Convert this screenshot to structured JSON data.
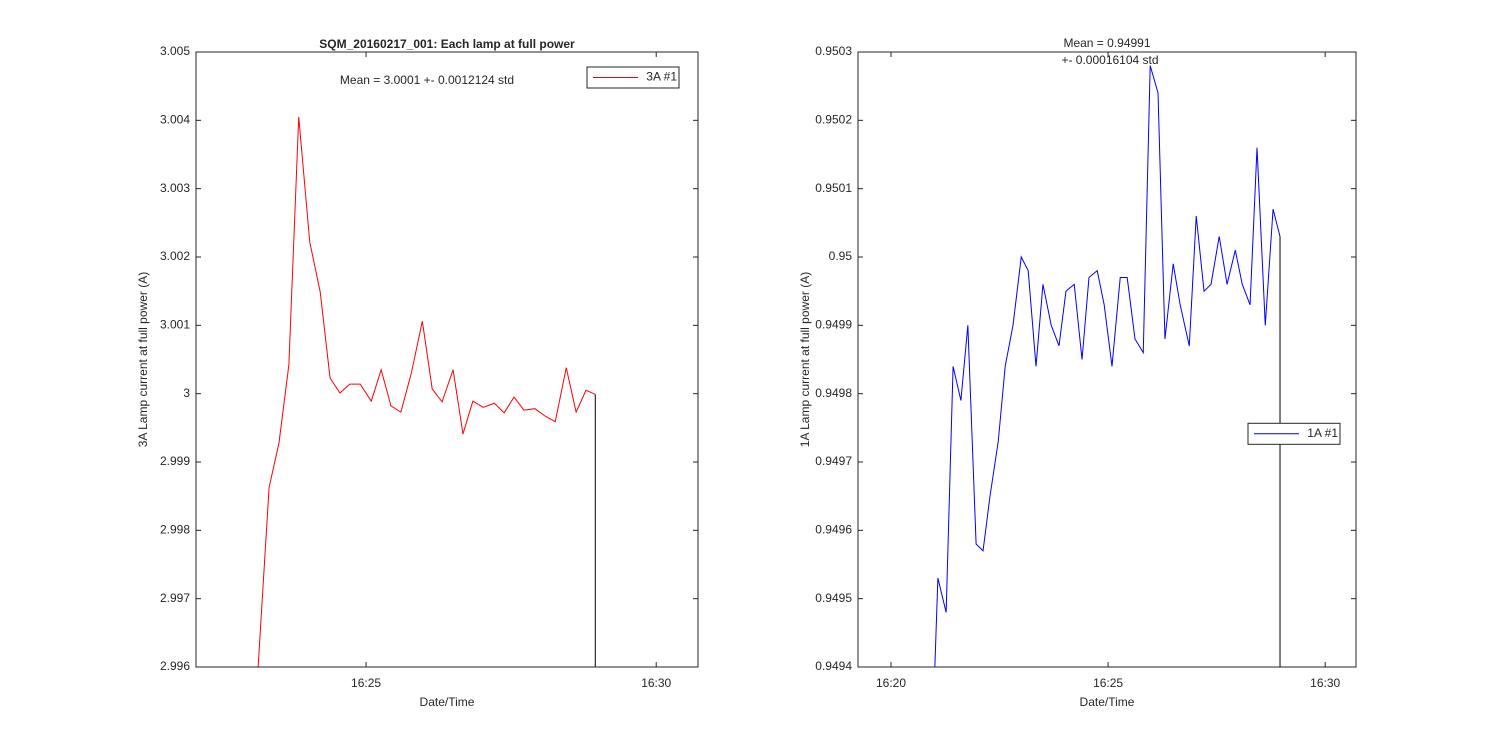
{
  "chart_data": [
    {
      "type": "line",
      "title": "SQM_20160217_001: Each lamp at full power",
      "annotations": [
        "Mean = 3.0001 +- 0.0012124 std"
      ],
      "xlabel": "Date/Time",
      "ylabel": "3A Lamp current at full power (A)",
      "xlim": [
        982.07,
        990.72
      ],
      "xticks": [
        {
          "value": 985,
          "label": "16:25"
        },
        {
          "value": 990,
          "label": "16:30"
        }
      ],
      "ylim": [
        2.996,
        3.005
      ],
      "yticks": [
        2.996,
        2.997,
        2.998,
        2.999,
        3,
        3.001,
        3.002,
        3.003,
        3.004,
        3.005
      ],
      "legend": "northeast",
      "grid": false,
      "series": [
        {
          "name": "3A #1",
          "color": "#ff0000",
          "x": [
            983.14,
            983.33,
            983.5,
            983.67,
            983.84,
            984.03,
            984.21,
            984.38,
            984.55,
            984.72,
            984.9,
            985.09,
            985.26,
            985.43,
            985.6,
            985.78,
            985.97,
            986.14,
            986.31,
            986.5,
            986.67,
            986.84,
            987.02,
            987.21,
            987.38,
            987.55,
            987.72,
            987.91,
            988.09,
            988.26,
            988.45,
            988.62,
            988.79,
            988.95
          ],
          "values": [
            2.996,
            2.99863,
            2.99928,
            3.00042,
            3.00405,
            3.00222,
            3.00149,
            3.00023,
            3.00001,
            3.00014,
            3.00014,
            2.99989,
            3.00035,
            2.99982,
            2.99973,
            3.0003,
            3.00106,
            3.00007,
            2.99988,
            3.00035,
            2.99941,
            2.99989,
            2.9998,
            2.99986,
            2.99972,
            2.99995,
            2.99976,
            2.99978,
            2.99967,
            2.99959,
            3.00038,
            2.99973,
            3.00005,
            2.99999
          ]
        },
        {
          "color": "#000000",
          "x": [
            988.95,
            988.95
          ],
          "values": [
            2.99999,
            2.996
          ]
        }
      ]
    },
    {
      "type": "line",
      "annotations": [
        "Mean = 0.94991",
        "+- 0.00016104 std"
      ],
      "xlabel": "Date/Time",
      "ylabel": "1A Lamp current at full power (A)",
      "xlim": [
        979.24,
        990.71
      ],
      "xticks": [
        {
          "value": 980,
          "label": "16:20"
        },
        {
          "value": 985,
          "label": "16:25"
        },
        {
          "value": 990,
          "label": "16:30"
        }
      ],
      "ylim": [
        0.9494,
        0.9503
      ],
      "yticks": [
        0.9494,
        0.9495,
        0.9496,
        0.9497,
        0.9498,
        0.9499,
        0.95,
        0.9501,
        0.9502,
        0.9503
      ],
      "legend": "east",
      "grid": false,
      "series": [
        {
          "name": "1A #1",
          "color": "#0000ff",
          "x": [
            981.01,
            981.08,
            981.27,
            981.43,
            981.61,
            981.77,
            981.96,
            982.12,
            982.28,
            982.47,
            982.63,
            982.81,
            983.0,
            983.16,
            983.34,
            983.5,
            983.69,
            983.87,
            984.03,
            984.22,
            984.4,
            984.56,
            984.75,
            984.91,
            985.09,
            985.28,
            985.44,
            985.62,
            985.81,
            985.97,
            986.15,
            986.31,
            986.5,
            986.66,
            986.87,
            987.03,
            987.21,
            987.37,
            987.56,
            987.74,
            987.93,
            988.09,
            988.27,
            988.43,
            988.62,
            988.8,
            988.96
          ],
          "values": [
            0.9494,
            0.94953,
            0.94948,
            0.94984,
            0.94979,
            0.9499,
            0.94958,
            0.94957,
            0.94965,
            0.94973,
            0.94984,
            0.9499,
            0.95,
            0.94998,
            0.94984,
            0.94996,
            0.9499,
            0.94987,
            0.94995,
            0.94996,
            0.94985,
            0.94997,
            0.94998,
            0.94993,
            0.94984,
            0.94997,
            0.94997,
            0.94988,
            0.94986,
            0.95028,
            0.95024,
            0.94988,
            0.94999,
            0.94993,
            0.94987,
            0.95006,
            0.94995,
            0.94996,
            0.95003,
            0.94996,
            0.95001,
            0.94996,
            0.94993,
            0.95016,
            0.9499,
            0.95007,
            0.95003
          ]
        },
        {
          "color": "#000000",
          "x": [
            988.96,
            988.96
          ],
          "values": [
            0.95003,
            0.9494
          ]
        }
      ]
    }
  ]
}
